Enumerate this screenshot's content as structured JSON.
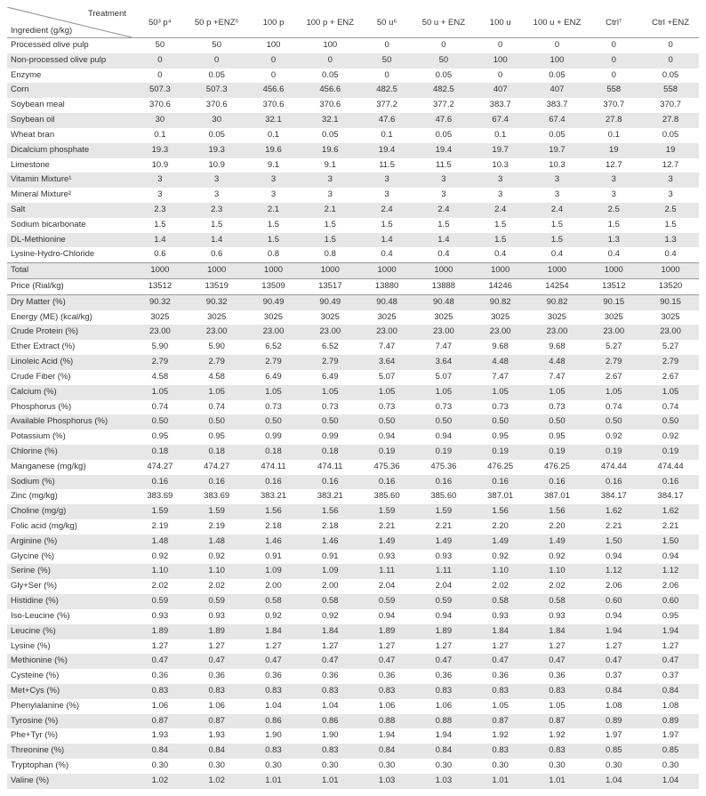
{
  "header": {
    "treatment_label": "Treatment",
    "ingredient_label": "Ingredient (g/kg)",
    "columns": [
      "50³ p⁴",
      "50 p +ENZ⁵",
      "100 p",
      "100 p + ENZ",
      "50 u⁶",
      "50 u + ENZ",
      "100 u",
      "100 u + ENZ",
      "Ctrl⁷",
      "Ctrl +ENZ"
    ]
  },
  "rows": [
    {
      "label": "Processed olive pulp",
      "vals": [
        "50",
        "50",
        "100",
        "100",
        "0",
        "0",
        "0",
        "0",
        "0",
        "0"
      ]
    },
    {
      "label": "Non-processed olive pulp",
      "vals": [
        "0",
        "0",
        "0",
        "0",
        "50",
        "50",
        "100",
        "100",
        "0",
        "0"
      ],
      "shade": true
    },
    {
      "label": "Enzyme",
      "vals": [
        "0",
        "0.05",
        "0",
        "0.05",
        "0",
        "0.05",
        "0",
        "0.05",
        "0",
        "0.05"
      ]
    },
    {
      "label": "Corn",
      "vals": [
        "507.3",
        "507.3",
        "456.6",
        "456.6",
        "482.5",
        "482.5",
        "407",
        "407",
        "558",
        "558"
      ],
      "shade": true
    },
    {
      "label": "Soybean meal",
      "vals": [
        "370.6",
        "370.6",
        "370.6",
        "370.6",
        "377.2",
        "377.2",
        "383.7",
        "383.7",
        "370.7",
        "370.7"
      ]
    },
    {
      "label": "Soybean oil",
      "vals": [
        "30",
        "30",
        "32.1",
        "32.1",
        "47.6",
        "47.6",
        "67.4",
        "67.4",
        "27.8",
        "27.8"
      ],
      "shade": true
    },
    {
      "label": "Wheat bran",
      "vals": [
        "0.1",
        "0.05",
        "0.1",
        "0.05",
        "0.1",
        "0.05",
        "0.1",
        "0.05",
        "0.1",
        "0.05"
      ]
    },
    {
      "label": "Dicalcium phosphate",
      "vals": [
        "19.3",
        "19.3",
        "19.6",
        "19.6",
        "19.4",
        "19.4",
        "19.7",
        "19.7",
        "19",
        "19"
      ],
      "shade": true
    },
    {
      "label": "Limestone",
      "vals": [
        "10.9",
        "10.9",
        "9.1",
        "9.1",
        "11.5",
        "11.5",
        "10.3",
        "10.3",
        "12.7",
        "12.7"
      ]
    },
    {
      "label": "Vitamin Mixture¹",
      "vals": [
        "3",
        "3",
        "3",
        "3",
        "3",
        "3",
        "3",
        "3",
        "3",
        "3"
      ],
      "shade": true
    },
    {
      "label": "Mineral Mixture²",
      "vals": [
        "3",
        "3",
        "3",
        "3",
        "3",
        "3",
        "3",
        "3",
        "3",
        "3"
      ]
    },
    {
      "label": "Salt",
      "vals": [
        "2.3",
        "2.3",
        "2.1",
        "2.1",
        "2.4",
        "2.4",
        "2.4",
        "2.4",
        "2.5",
        "2.5"
      ],
      "shade": true
    },
    {
      "label": "Sodium bicarbonate",
      "vals": [
        "1.5",
        "1.5",
        "1.5",
        "1.5",
        "1.5",
        "1.5",
        "1.5",
        "1.5",
        "1.5",
        "1.5"
      ]
    },
    {
      "label": "DL-Methionine",
      "vals": [
        "1.4",
        "1.4",
        "1.5",
        "1.5",
        "1.4",
        "1.4",
        "1.5",
        "1.5",
        "1.3",
        "1.3"
      ],
      "shade": true
    },
    {
      "label": "Lysine-Hydro-Chloride",
      "vals": [
        "0.6",
        "0.6",
        "0.8",
        "0.8",
        "0.4",
        "0.4",
        "0.4",
        "0.4",
        "0.4",
        "0.4"
      ]
    },
    {
      "label": "Total",
      "vals": [
        "1000",
        "1000",
        "1000",
        "1000",
        "1000",
        "1000",
        "1000",
        "1000",
        "1000",
        "1000"
      ],
      "shade": true,
      "total": true
    },
    {
      "label": "Price (Rial/kg)",
      "vals": [
        "13512",
        "13519",
        "13509",
        "13517",
        "13880",
        "13888",
        "14246",
        "14254",
        "13512",
        "13520"
      ],
      "sep": true
    },
    {
      "label": "Dry Matter (%)",
      "vals": [
        "90.32",
        "90.32",
        "90.49",
        "90.49",
        "90.48",
        "90.48",
        "90.82",
        "90.82",
        "90.15",
        "90.15"
      ],
      "shade": true
    },
    {
      "label": "Energy (ME) (kcal/kg)",
      "vals": [
        "3025",
        "3025",
        "3025",
        "3025",
        "3025",
        "3025",
        "3025",
        "3025",
        "3025",
        "3025"
      ]
    },
    {
      "label": "Crude Protein (%)",
      "vals": [
        "23.00",
        "23.00",
        "23.00",
        "23.00",
        "23.00",
        "23.00",
        "23.00",
        "23.00",
        "23.00",
        "23.00"
      ],
      "shade": true
    },
    {
      "label": "Ether Extract (%)",
      "vals": [
        "5.90",
        "5.90",
        "6.52",
        "6.52",
        "7.47",
        "7.47",
        "9.68",
        "9.68",
        "5.27",
        "5.27"
      ]
    },
    {
      "label": "Linoleic Acid (%)",
      "vals": [
        "2.79",
        "2.79",
        "2.79",
        "2.79",
        "3.64",
        "3.64",
        "4.48",
        "4.48",
        "2.79",
        "2.79"
      ],
      "shade": true
    },
    {
      "label": "Crude Fiber (%)",
      "vals": [
        "4.58",
        "4.58",
        "6.49",
        "6.49",
        "5.07",
        "5.07",
        "7.47",
        "7.47",
        "2.67",
        "2.67"
      ]
    },
    {
      "label": "Calcium (%)",
      "vals": [
        "1.05",
        "1.05",
        "1.05",
        "1.05",
        "1.05",
        "1.05",
        "1.05",
        "1.05",
        "1.05",
        "1.05"
      ],
      "shade": true
    },
    {
      "label": "Phosphorus (%)",
      "vals": [
        "0.74",
        "0.74",
        "0.73",
        "0.73",
        "0.73",
        "0.73",
        "0.73",
        "0.73",
        "0.74",
        "0.74"
      ]
    },
    {
      "label": "Available Phosphorus (%)",
      "vals": [
        "0.50",
        "0.50",
        "0.50",
        "0.50",
        "0.50",
        "0.50",
        "0.50",
        "0.50",
        "0.50",
        "0.50"
      ],
      "shade": true
    },
    {
      "label": "Potassium (%)",
      "vals": [
        "0.95",
        "0.95",
        "0.99",
        "0.99",
        "0.94",
        "0.94",
        "0.95",
        "0.95",
        "0.92",
        "0.92"
      ]
    },
    {
      "label": "Chlorine (%)",
      "vals": [
        "0.18",
        "0.18",
        "0.18",
        "0.18",
        "0.19",
        "0.19",
        "0.19",
        "0.19",
        "0.19",
        "0.19"
      ],
      "shade": true
    },
    {
      "label": "Manganese (mg/kg)",
      "vals": [
        "474.27",
        "474.27",
        "474.11",
        "474.11",
        "475.36",
        "475.36",
        "476.25",
        "476.25",
        "474.44",
        "474.44"
      ]
    },
    {
      "label": "Sodium (%)",
      "vals": [
        "0.16",
        "0.16",
        "0.16",
        "0.16",
        "0.16",
        "0.16",
        "0.16",
        "0.16",
        "0.16",
        "0.16"
      ],
      "shade": true
    },
    {
      "label": "Zinc (mg/kg)",
      "vals": [
        "383.69",
        "383.69",
        "383.21",
        "383.21",
        "385.60",
        "385.60",
        "387.01",
        "387.01",
        "384.17",
        "384.17"
      ]
    },
    {
      "label": "Choline (mg/g)",
      "vals": [
        "1.59",
        "1.59",
        "1.56",
        "1.56",
        "1.59",
        "1.59",
        "1.56",
        "1.56",
        "1.62",
        "1.62"
      ],
      "shade": true
    },
    {
      "label": "Folic acid (mg/kg)",
      "vals": [
        "2.19",
        "2.19",
        "2.18",
        "2.18",
        "2.21",
        "2.21",
        "2.20",
        "2.20",
        "2.21",
        "2.21"
      ]
    },
    {
      "label": "Arginine (%)",
      "vals": [
        "1.48",
        "1.48",
        "1.46",
        "1.46",
        "1.49",
        "1.49",
        "1.49",
        "1.49",
        "1.50",
        "1.50"
      ],
      "shade": true
    },
    {
      "label": "Glycine (%)",
      "vals": [
        "0.92",
        "0.92",
        "0.91",
        "0.91",
        "0.93",
        "0.93",
        "0.92",
        "0.92",
        "0.94",
        "0.94"
      ]
    },
    {
      "label": "Serine (%)",
      "vals": [
        "1.10",
        "1.10",
        "1.09",
        "1.09",
        "1.11",
        "1.11",
        "1.10",
        "1.10",
        "1.12",
        "1.12"
      ],
      "shade": true
    },
    {
      "label": "Gly+Ser (%)",
      "vals": [
        "2.02",
        "2.02",
        "2.00",
        "2.00",
        "2.04",
        "2.04",
        "2.02",
        "2.02",
        "2.06",
        "2.06"
      ]
    },
    {
      "label": "Histidine (%)",
      "vals": [
        "0.59",
        "0.59",
        "0.58",
        "0.58",
        "0.59",
        "0.59",
        "0.58",
        "0.58",
        "0.60",
        "0.60"
      ],
      "shade": true
    },
    {
      "label": "Iso-Leucine (%)",
      "vals": [
        "0.93",
        "0.93",
        "0.92",
        "0.92",
        "0.94",
        "0.94",
        "0.93",
        "0.93",
        "0.94",
        "0.95"
      ]
    },
    {
      "label": "Leucine (%)",
      "vals": [
        "1.89",
        "1.89",
        "1.84",
        "1.84",
        "1.89",
        "1.89",
        "1.84",
        "1.84",
        "1.94",
        "1.94"
      ],
      "shade": true
    },
    {
      "label": "Lysine (%)",
      "vals": [
        "1.27",
        "1.27",
        "1.27",
        "1.27",
        "1.27",
        "1.27",
        "1.27",
        "1.27",
        "1.27",
        "1.27"
      ]
    },
    {
      "label": "Methionine (%)",
      "vals": [
        "0.47",
        "0.47",
        "0.47",
        "0.47",
        "0.47",
        "0.47",
        "0.47",
        "0.47",
        "0.47",
        "0.47"
      ],
      "shade": true
    },
    {
      "label": "Cysteine (%)",
      "vals": [
        "0.36",
        "0.36",
        "0.36",
        "0.36",
        "0.36",
        "0.36",
        "0.36",
        "0.36",
        "0.37",
        "0.37"
      ]
    },
    {
      "label": "Met+Cys (%)",
      "vals": [
        "0.83",
        "0.83",
        "0.83",
        "0.83",
        "0.83",
        "0.83",
        "0.83",
        "0.83",
        "0.84",
        "0.84"
      ],
      "shade": true
    },
    {
      "label": "Phenylalanine (%)",
      "vals": [
        "1.06",
        "1.06",
        "1.04",
        "1.04",
        "1.06",
        "1.06",
        "1.05",
        "1.05",
        "1.08",
        "1.08"
      ]
    },
    {
      "label": "Tyrosine (%)",
      "vals": [
        "0.87",
        "0.87",
        "0.86",
        "0.86",
        "0.88",
        "0.88",
        "0.87",
        "0.87",
        "0.89",
        "0.89"
      ],
      "shade": true
    },
    {
      "label": "Phe+Tyr (%)",
      "vals": [
        "1.93",
        "1.93",
        "1.90",
        "1.90",
        "1.94",
        "1.94",
        "1.92",
        "1.92",
        "1.97",
        "1.97"
      ]
    },
    {
      "label": "Threonine (%)",
      "vals": [
        "0.84",
        "0.84",
        "0.83",
        "0.83",
        "0.84",
        "0.84",
        "0.83",
        "0.83",
        "0.85",
        "0.85"
      ],
      "shade": true
    },
    {
      "label": "Tryptophan (%)",
      "vals": [
        "0.30",
        "0.30",
        "0.30",
        "0.30",
        "0.30",
        "0.30",
        "0.30",
        "0.30",
        "0.30",
        "0.30"
      ]
    },
    {
      "label": "Valine (%)",
      "vals": [
        "1.02",
        "1.02",
        "1.01",
        "1.01",
        "1.03",
        "1.03",
        "1.01",
        "1.01",
        "1.04",
        "1.04"
      ],
      "shade": true
    }
  ]
}
